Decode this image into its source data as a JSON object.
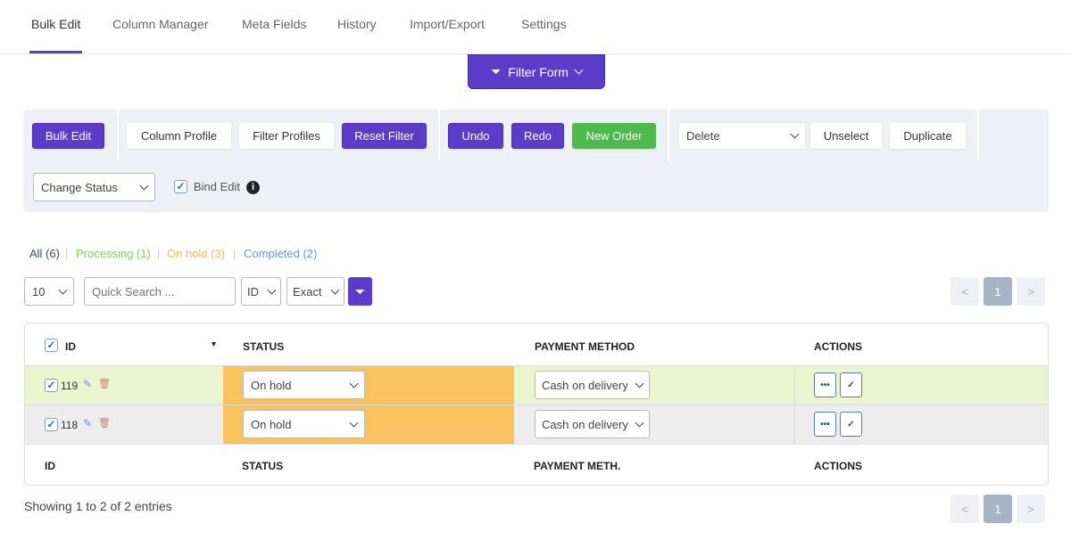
{
  "tabs": [
    "Bulk Edit",
    "Column Manager",
    "Meta Fields",
    "History",
    "Import/Export",
    "Settings"
  ],
  "filter_form": "Filter Form",
  "toolbar": {
    "bulk_edit": "Bulk Edit",
    "column_profile": "Column Profile",
    "filter_profiles": "Filter Profiles",
    "reset_filter": "Reset Filter",
    "undo": "Undo",
    "redo": "Redo",
    "new_order": "New Order",
    "delete_select": "Delete",
    "unselect": "Unselect",
    "duplicate": "Duplicate",
    "change_status": "Change Status",
    "bind_edit": "Bind Edit"
  },
  "status_links": [
    {
      "label": "All (6)",
      "color": "#3a4a6a"
    },
    {
      "label": "Processing (1)",
      "color": "#7dd35a"
    },
    {
      "label": "On hold (3)",
      "color": "#f8b860"
    },
    {
      "label": "Completed (2)",
      "color": "#6a9ad8"
    }
  ],
  "controls": {
    "per_page": "10",
    "search_placeholder": "Quick Search ...",
    "search_field": "ID",
    "match": "Exact"
  },
  "pagination": {
    "prev": "<",
    "current": "1",
    "next": ">"
  },
  "table": {
    "headers": [
      "ID",
      "STATUS",
      "PAYMENT METHOD",
      "ACTIONS"
    ],
    "footers": [
      "ID",
      "STATUS",
      "PAYMENT METH.",
      "ACTIONS"
    ],
    "rows": [
      {
        "id": "119",
        "status": "On hold",
        "payment": "Cash on delivery"
      },
      {
        "id": "118",
        "status": "On hold",
        "payment": "Cash on delivery"
      }
    ]
  },
  "footer_text": "Showing 1 to 2 of 2 entries",
  "colors": {
    "accent": "#5a3dc8",
    "green": "#4cbb4c",
    "on_hold": "#f8c35f"
  }
}
